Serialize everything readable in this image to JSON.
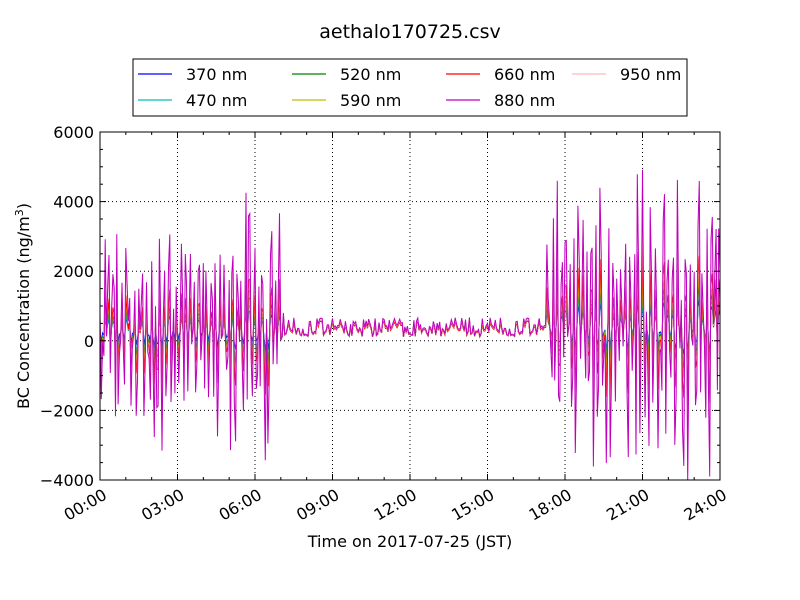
{
  "chart_data": {
    "type": "line",
    "title": "aethalo170725.csv",
    "xlabel": "Time on 2017-07-25 (JST)",
    "ylabel_main": "BC Concentration (ng/m",
    "ylabel_sup": "3",
    "ylabel_end": ")",
    "xlim": [
      "00:00",
      "24:00"
    ],
    "ylim": [
      -4000,
      6000
    ],
    "xtick_labels": [
      "00:00",
      "03:00",
      "06:00",
      "09:00",
      "12:00",
      "15:00",
      "18:00",
      "21:00",
      "24:00"
    ],
    "ytick_labels": [
      "6000",
      "4000",
      "2000",
      "0",
      "−2000",
      "−4000"
    ],
    "grid": true,
    "legend_position": "top",
    "series": [
      {
        "name": "370 nm",
        "color": "#0000ff",
        "peak_hours": [
          [
            0.0,
            8.0,
            300,
            500
          ],
          [
            7.0,
            17.3,
            350,
            300
          ],
          [
            17.3,
            24.0,
            400,
            700
          ]
        ]
      },
      {
        "name": "470 nm",
        "color": "#00bfbf",
        "peak_hours": [
          [
            0.0,
            8.0,
            250,
            700
          ],
          [
            7.0,
            17.3,
            350,
            300
          ],
          [
            17.3,
            24.0,
            400,
            900
          ]
        ]
      },
      {
        "name": "520 nm",
        "color": "#008000",
        "peak_hours": [
          [
            0.0,
            8.0,
            250,
            900
          ],
          [
            7.0,
            17.3,
            350,
            300
          ],
          [
            17.3,
            24.0,
            400,
            1100
          ]
        ]
      },
      {
        "name": "590 nm",
        "color": "#bfbf00",
        "peak_hours": [
          [
            0.0,
            8.0,
            250,
            1100
          ],
          [
            7.0,
            17.3,
            350,
            300
          ],
          [
            17.3,
            24.0,
            400,
            1300
          ]
        ]
      },
      {
        "name": "660 nm",
        "color": "#ff0000",
        "peak_hours": [
          [
            0.0,
            8.0,
            250,
            1400
          ],
          [
            7.0,
            17.3,
            350,
            300
          ],
          [
            17.3,
            24.0,
            400,
            1800
          ]
        ]
      },
      {
        "name": "880 nm",
        "color": "#bf00bf",
        "peak_hours": [
          [
            0.0,
            8.0,
            400,
            3000
          ],
          [
            7.0,
            17.3,
            400,
            350
          ],
          [
            17.3,
            24.0,
            500,
            3600
          ]
        ]
      },
      {
        "name": "950 nm",
        "color": "#ffb6c1",
        "peak_hours": [
          [
            0.0,
            8.0,
            350,
            2600
          ],
          [
            7.0,
            17.3,
            380,
            330
          ],
          [
            17.3,
            24.0,
            450,
            3300
          ]
        ]
      }
    ]
  }
}
